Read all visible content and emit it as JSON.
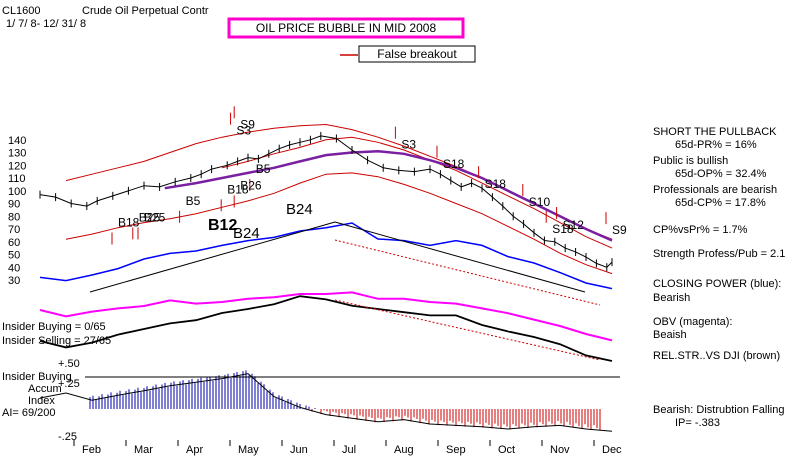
{
  "header": {
    "symbol": "CL1600",
    "name": "Crude Oil Perpetual Contr",
    "dates": "1/ 7/ 8- 12/ 31/ 8",
    "banner": "OIL PRICE BUBBLE IN MID 2008",
    "breakout_note": "False breakout"
  },
  "colors": {
    "price": "#000000",
    "bands": "#cc0000",
    "ma": "#7a1fa2",
    "closing_power": "#0000ff",
    "obv": "#ff00ff",
    "relstr": "#000000",
    "accum_pos": "#0000aa",
    "accum_neg": "#cc0000",
    "banner": "#ff00cc"
  },
  "signals": [
    {
      "label": "S9",
      "month": 4.85,
      "price": 149
    },
    {
      "label": "S3",
      "month": 4.78,
      "price": 144
    },
    {
      "label": "S3",
      "month": 7.95,
      "price": 133
    },
    {
      "label": "S18",
      "month": 8.75,
      "price": 118
    },
    {
      "label": "S18",
      "month": 9.55,
      "price": 102
    },
    {
      "label": "S10",
      "month": 10.4,
      "price": 88
    },
    {
      "label": "S12",
      "month": 11.05,
      "price": 70
    },
    {
      "label": "S18",
      "month": 10.85,
      "price": 67
    },
    {
      "label": "S9",
      "month": 12.0,
      "price": 66
    },
    {
      "label": "B5",
      "month": 5.15,
      "price": 114
    },
    {
      "label": "B5",
      "month": 3.8,
      "price": 89
    },
    {
      "label": "B18",
      "month": 4.6,
      "price": 98
    },
    {
      "label": "B26",
      "month": 4.85,
      "price": 101
    },
    {
      "label": "B18",
      "month": 2.5,
      "price": 72
    },
    {
      "label": "B25",
      "month": 3.0,
      "price": 76
    },
    {
      "label": "B25",
      "month": 2.9,
      "price": 76
    }
  ],
  "pane_labels": {
    "b12": "B12",
    "b24a": "B24",
    "b24b": "B24",
    "insider_buying": "Insider Buying = 0/65",
    "insider_selling": "Insider Selling = 27/65",
    "insider_buying2": "Insider Buying",
    "accum": "Accum",
    "index": "Index",
    "ai": "AI= 69/200",
    "plus50": "+.50",
    "plus25": "+.25",
    "minus25": "-.25"
  },
  "side_panel": [
    {
      "text": "SHORT THE PULLBACK",
      "indent": false
    },
    {
      "text": "65d-PR% = 16%",
      "indent": true
    },
    {
      "text": "Public is bullish",
      "indent": false
    },
    {
      "text": "65d-OP% = 32.4%",
      "indent": true
    },
    {
      "text": "Professionals are bearish",
      "indent": false
    },
    {
      "text": "65d-CP% = 17.8%",
      "indent": true
    },
    {
      "text": "CP%vsPr% =   1.7%",
      "indent": false
    },
    {
      "text": "Strength Profess/Pub = 2.1",
      "indent": false
    },
    {
      "text": "CLOSING POWER (blue):",
      "indent": false
    },
    {
      "text": "Bearish",
      "indent": false
    },
    {
      "text": "OBV (magenta):",
      "indent": false
    },
    {
      "text": "Beaish",
      "indent": false
    },
    {
      "text": "REL.STR..VS DJI (brown)",
      "indent": false
    },
    {
      "text": "Bearish: Distrubtion Falling",
      "indent": false
    },
    {
      "text": "IP= -.383",
      "indent": true
    }
  ],
  "chart_data": {
    "type": "line",
    "x_unit": "month index (Jan=1 … Dec=12, 2008)",
    "x_ticks": [
      "Feb",
      "Mar",
      "Apr",
      "May",
      "Jun",
      "Jul",
      "Aug",
      "Sep",
      "Oct",
      "Nov",
      "Dec"
    ],
    "y_ticks": [
      30,
      40,
      50,
      60,
      70,
      80,
      90,
      100,
      110,
      120,
      130,
      140
    ],
    "ylim": [
      25,
      150
    ],
    "grid": false,
    "series": [
      {
        "key": "price",
        "x": [
          1.0,
          1.3,
          1.6,
          1.9,
          2.1,
          2.4,
          2.7,
          3.0,
          3.3,
          3.6,
          3.9,
          4.1,
          4.3,
          4.6,
          4.8,
          5.0,
          5.2,
          5.4,
          5.6,
          5.8,
          6.0,
          6.2,
          6.4,
          6.7,
          7.0,
          7.3,
          7.6,
          7.9,
          8.2,
          8.5,
          8.7,
          8.9,
          9.1,
          9.3,
          9.5,
          9.7,
          9.9,
          10.1,
          10.3,
          10.5,
          10.7,
          10.9,
          11.1,
          11.3,
          11.5,
          11.7,
          11.9,
          12.0
        ],
        "y": [
          97,
          95,
          90,
          88,
          92,
          96,
          100,
          104,
          103,
          107,
          110,
          113,
          117,
          120,
          123,
          126,
          125,
          129,
          133,
          136,
          138,
          140,
          143,
          141,
          132,
          124,
          118,
          116,
          115,
          117,
          113,
          108,
          103,
          106,
          102,
          95,
          88,
          80,
          74,
          67,
          61,
          60,
          55,
          52,
          48,
          43,
          40,
          44
        ]
      },
      {
        "key": "upper_band",
        "x": [
          1.5,
          2.0,
          2.5,
          3.0,
          3.5,
          4.0,
          4.5,
          5.0,
          5.5,
          6.0,
          6.5,
          7.0,
          7.5,
          8.0,
          8.5,
          9.0,
          9.5,
          10.0,
          10.5,
          11.0,
          11.5,
          12.0
        ],
        "y": [
          108,
          113,
          118,
          123,
          130,
          137,
          142,
          146,
          149,
          151,
          152,
          148,
          142,
          135,
          127,
          119,
          110,
          100,
          90,
          80,
          70,
          62
        ]
      },
      {
        "key": "lower_band",
        "x": [
          1.5,
          2.0,
          2.5,
          3.0,
          3.5,
          4.0,
          4.5,
          5.0,
          5.5,
          6.0,
          6.5,
          7.0,
          7.5,
          8.0,
          8.5,
          9.0,
          9.5,
          10.0,
          10.5,
          11.0,
          11.5,
          12.0
        ],
        "y": [
          62,
          66,
          71,
          75,
          78,
          82,
          87,
          92,
          98,
          106,
          113,
          114,
          111,
          105,
          98,
          90,
          82,
          72,
          62,
          51,
          42,
          35
        ]
      },
      {
        "key": "inner_upper",
        "x": [
          4.5,
          5.0,
          5.5,
          6.0,
          6.5,
          7.0,
          7.5,
          8.0,
          8.5,
          9.0,
          9.5,
          10.0,
          10.5,
          11.0,
          11.5,
          12.0
        ],
        "y": [
          118,
          123,
          129,
          134,
          140,
          142,
          138,
          132,
          124,
          116,
          106,
          96,
          86,
          75,
          64,
          55
        ]
      },
      {
        "key": "moving_average",
        "x": [
          3.4,
          4.0,
          4.5,
          5.0,
          5.5,
          6.0,
          6.5,
          7.0,
          7.5,
          8.0,
          8.5,
          9.0,
          9.5,
          10.0,
          10.5,
          11.0,
          11.5,
          12.0
        ],
        "y": [
          102,
          106,
          110,
          114,
          118,
          123,
          128,
          130,
          131,
          129,
          124,
          118,
          110,
          100,
          90,
          80,
          70,
          61
        ]
      }
    ],
    "indicators": [
      {
        "key": "closing_power",
        "x": [
          1.0,
          1.5,
          2.0,
          2.5,
          3.0,
          3.5,
          4.0,
          4.5,
          5.0,
          5.5,
          6.0,
          6.5,
          7.0,
          7.5,
          8.0,
          8.5,
          9.0,
          9.5,
          10.0,
          10.5,
          11.0,
          11.5,
          12.0
        ],
        "v": [
          0.22,
          0.18,
          0.25,
          0.33,
          0.45,
          0.52,
          0.55,
          0.62,
          0.68,
          0.72,
          0.8,
          0.84,
          0.9,
          0.7,
          0.68,
          0.62,
          0.68,
          0.62,
          0.48,
          0.4,
          0.28,
          0.15,
          0.08
        ]
      },
      {
        "key": "obv",
        "x": [
          1.0,
          1.5,
          2.0,
          2.5,
          3.0,
          3.5,
          4.0,
          4.5,
          5.0,
          5.5,
          6.0,
          6.5,
          7.0,
          7.5,
          8.0,
          8.5,
          9.0,
          9.5,
          10.0,
          10.5,
          11.0,
          11.5,
          12.0
        ],
        "v": [
          0.5,
          0.42,
          0.48,
          0.52,
          0.55,
          0.62,
          0.58,
          0.6,
          0.64,
          0.66,
          0.7,
          0.7,
          0.72,
          0.64,
          0.64,
          0.6,
          0.58,
          0.52,
          0.46,
          0.38,
          0.3,
          0.2,
          0.12
        ]
      },
      {
        "key": "relstr",
        "x": [
          1.0,
          1.5,
          2.0,
          2.5,
          3.0,
          3.5,
          4.0,
          4.5,
          5.0,
          5.5,
          6.0,
          6.5,
          7.0,
          7.5,
          8.0,
          8.5,
          9.0,
          9.5,
          10.0,
          10.5,
          11.0,
          11.5,
          12.0
        ],
        "v": [
          0.3,
          0.22,
          0.28,
          0.38,
          0.45,
          0.52,
          0.56,
          0.65,
          0.7,
          0.76,
          0.86,
          0.82,
          0.74,
          0.7,
          0.66,
          0.62,
          0.62,
          0.5,
          0.42,
          0.35,
          0.26,
          0.12,
          0.05
        ]
      }
    ],
    "accum_index": {
      "x": [
        1.0,
        1.5,
        2.0,
        2.5,
        3.0,
        3.5,
        4.0,
        4.5,
        5.0,
        5.5,
        6.0,
        6.5,
        7.0,
        7.5,
        8.0,
        8.5,
        9.0,
        9.5,
        10.0,
        10.5,
        11.0,
        11.5,
        12.0
      ],
      "v": [
        0.18,
        0.25,
        0.15,
        0.22,
        0.28,
        0.35,
        0.4,
        0.45,
        0.52,
        0.2,
        0.05,
        -0.05,
        -0.1,
        -0.15,
        -0.12,
        -0.18,
        -0.2,
        -0.22,
        -0.25,
        -0.22,
        -0.2,
        -0.25,
        -0.28
      ],
      "ylim": [
        -0.3,
        0.55
      ]
    }
  }
}
